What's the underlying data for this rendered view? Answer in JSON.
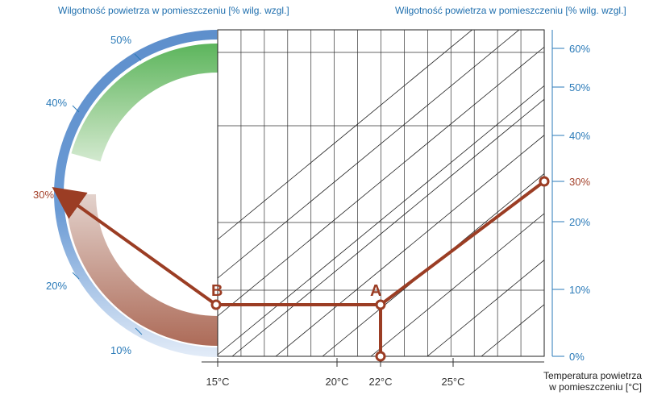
{
  "titles": {
    "left": "Wilgotność powietrza w pomieszczeniu [% wilg. wzgl.]",
    "right": "Wilgotność powietrza w pomieszczeniu [% wilg. wzgl.]"
  },
  "x_axis": {
    "title_line1": "Temperatura powietrza",
    "title_line2": "w pomieszczeniu [°C]",
    "ticks": [
      {
        "label": "15°C",
        "value": 15,
        "highlight": false
      },
      {
        "label": "20°C",
        "value": 20,
        "highlight": false
      },
      {
        "label": "22°C",
        "value": 22,
        "highlight": true
      },
      {
        "label": "25°C",
        "value": 25,
        "highlight": false
      }
    ]
  },
  "right_axis": {
    "ticks": [
      {
        "label": "60%",
        "value": 60,
        "highlight": false
      },
      {
        "label": "50%",
        "value": 50,
        "highlight": false
      },
      {
        "label": "40%",
        "value": 40,
        "highlight": false
      },
      {
        "label": "30%",
        "value": 30,
        "highlight": true
      },
      {
        "label": "20%",
        "value": 20,
        "highlight": false
      },
      {
        "label": "10%",
        "value": 10,
        "highlight": false
      },
      {
        "label": "0%",
        "value": 0,
        "highlight": false
      }
    ]
  },
  "gauge": {
    "labels": [
      {
        "label": "50%",
        "value": 50,
        "highlight": false
      },
      {
        "label": "40%",
        "value": 40,
        "highlight": false
      },
      {
        "label": "30%",
        "value": 30,
        "highlight": true
      },
      {
        "label": "20%",
        "value": 20,
        "highlight": false
      },
      {
        "label": "10%",
        "value": 10,
        "highlight": false
      }
    ]
  },
  "points": [
    {
      "label": "A",
      "temperature": 22
    },
    {
      "label": "B",
      "temperature": 15
    }
  ],
  "colors": {
    "accent": "#9b3d24",
    "axis_blue": "#2a7ab8",
    "title_blue": "#1f6fae"
  }
}
